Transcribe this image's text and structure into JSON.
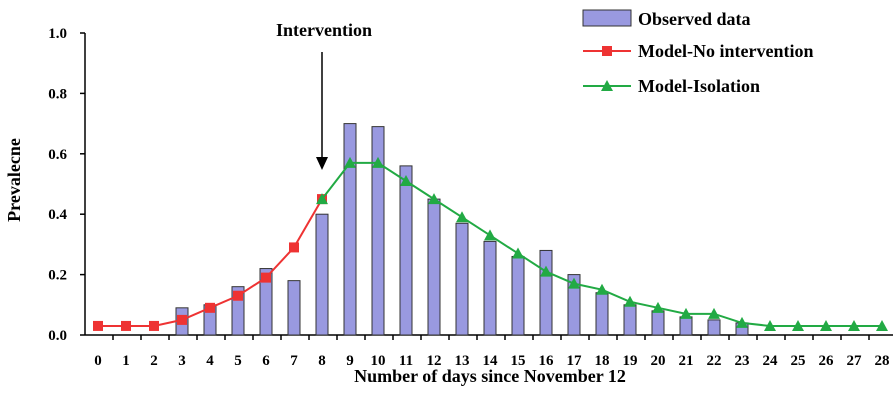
{
  "chart_data": {
    "type": "bar",
    "xlabel": "Number of days since November 12",
    "ylabel": "Prevalecne",
    "ylim": [
      0,
      1.0
    ],
    "yticks": [
      "0.0",
      "0.2",
      "0.4",
      "0.6",
      "0.8",
      "1.0"
    ],
    "ytick_values": [
      0,
      0.2,
      0.4,
      0.6,
      0.8,
      1.0
    ],
    "categories": [
      "0",
      "1",
      "2",
      "3",
      "4",
      "5",
      "6",
      "7",
      "8",
      "9",
      "10",
      "11",
      "12",
      "13",
      "14",
      "15",
      "16",
      "17",
      "18",
      "19",
      "20",
      "21",
      "22",
      "23",
      "24",
      "25",
      "26",
      "27",
      "28"
    ],
    "x": [
      0,
      1,
      2,
      3,
      4,
      5,
      6,
      7,
      8,
      9,
      10,
      11,
      12,
      13,
      14,
      15,
      16,
      17,
      18,
      19,
      20,
      21,
      22,
      23,
      24,
      25,
      26,
      27,
      28
    ],
    "grid": false,
    "legend_position": "top-right",
    "annotation": {
      "text": "Intervention",
      "x": 8
    },
    "series": [
      {
        "name": "Observed data",
        "kind": "bar",
        "color": "#9999e0",
        "x": [
          3,
          4,
          5,
          6,
          7,
          8,
          9,
          10,
          11,
          12,
          13,
          14,
          15,
          16,
          17,
          18,
          19,
          20,
          21,
          22,
          23
        ],
        "values": [
          0.09,
          0.1,
          0.16,
          0.22,
          0.18,
          0.4,
          0.7,
          0.69,
          0.56,
          0.45,
          0.37,
          0.31,
          0.26,
          0.28,
          0.2,
          0.14,
          0.1,
          0.08,
          0.06,
          0.05,
          0.04
        ]
      },
      {
        "name": "Model-No intervention",
        "kind": "line",
        "marker": "square",
        "color": "#ee3333",
        "x": [
          0,
          1,
          2,
          3,
          4,
          5,
          6,
          7,
          8
        ],
        "values": [
          0.03,
          0.03,
          0.03,
          0.05,
          0.09,
          0.13,
          0.19,
          0.29,
          0.45
        ]
      },
      {
        "name": "Model-Isolation",
        "kind": "line",
        "marker": "triangle",
        "color": "#22aa44",
        "x": [
          8,
          9,
          10,
          11,
          12,
          13,
          14,
          15,
          16,
          17,
          18,
          19,
          20,
          21,
          22,
          23,
          24,
          25,
          26,
          27,
          28
        ],
        "values": [
          0.45,
          0.57,
          0.57,
          0.51,
          0.45,
          0.39,
          0.33,
          0.27,
          0.21,
          0.17,
          0.15,
          0.11,
          0.09,
          0.07,
          0.07,
          0.04,
          0.03,
          0.03,
          0.03,
          0.03,
          0.03
        ]
      }
    ]
  }
}
